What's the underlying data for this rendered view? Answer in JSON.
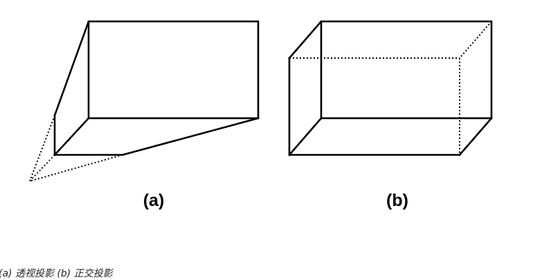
{
  "figure": {
    "label_a": "(a)",
    "label_b": "(b)",
    "caption": "(a) 透视投影   (b) 正交投影"
  }
}
